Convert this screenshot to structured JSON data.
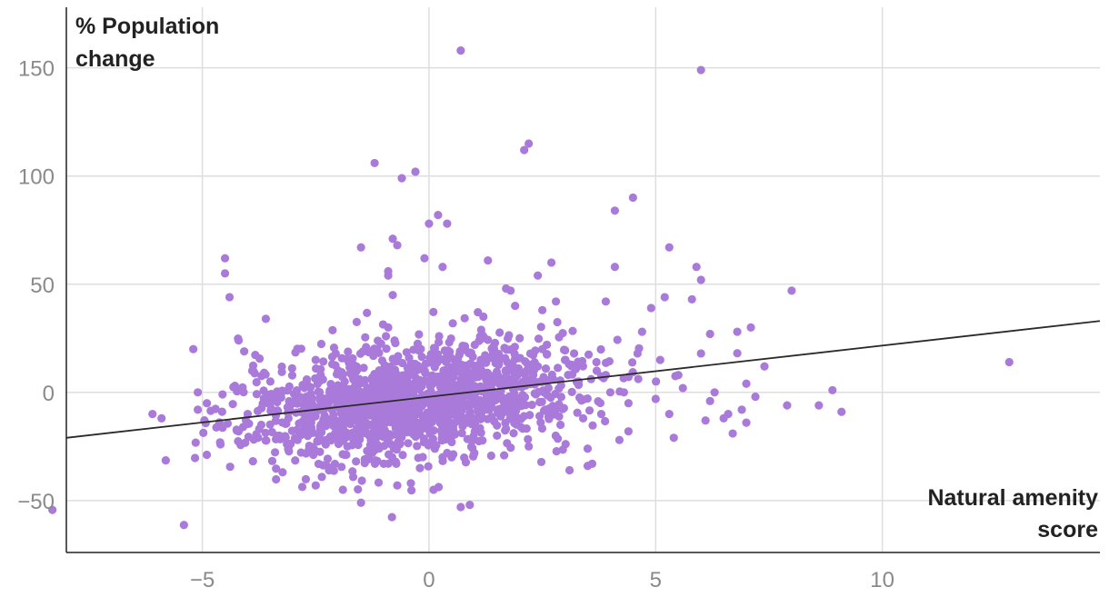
{
  "chart_data": {
    "type": "scatter",
    "ylabel_lines": [
      "% Population",
      "change"
    ],
    "xlabel_lines": [
      "Natural amenity",
      "score"
    ],
    "xlim": [
      -8,
      14.8
    ],
    "ylim": [
      -74,
      178
    ],
    "x_ticks": [
      -5,
      0,
      5,
      10
    ],
    "y_ticks": [
      -50,
      0,
      50,
      100,
      150
    ],
    "x_tick_labels": [
      "−5",
      "0",
      "5",
      "10"
    ],
    "y_tick_labels": [
      "−50",
      "0",
      "50",
      "100",
      "150"
    ],
    "grid": true,
    "point_color": "#a97ad9",
    "trend_color": "#2a2a2a",
    "trendline": {
      "x": [
        -8,
        14.8
      ],
      "y": [
        -21,
        33
      ]
    },
    "points": {
      "x": [
        0.7,
        6.0,
        2.2,
        2.1,
        -1.2,
        -0.3,
        -0.6,
        4.5,
        0.2,
        0.4,
        4.1,
        0.0,
        -0.8,
        -0.7,
        -1.5,
        5.3,
        -4.5,
        -4.5,
        2.7,
        0.3,
        1.3,
        4.1,
        5.9,
        -0.9,
        -0.9,
        2.4,
        8.0,
        1.8,
        -4.4,
        -0.1,
        -3.6,
        -5.2,
        -4.2,
        6.0,
        5.8,
        4.9,
        5.2,
        7.1,
        7.4,
        12.8,
        6.8,
        6.2,
        -6.1,
        -5.9,
        -5.1,
        -5.1,
        -4.9,
        -4.6,
        8.9,
        9.1,
        8.6,
        7.9,
        7.2,
        7.0,
        6.6,
        6.1,
        -1.9,
        -1.5,
        0.7,
        0.9,
        0.1,
        -0.7,
        -0.4,
        3.1,
        3.5,
        3.6,
        4.2,
        4.4,
        5.4,
        6.7,
        5.3,
        3.5,
        3.9,
        2.8,
        1.7,
        2.5,
        -3.9,
        -3.5,
        -2.5,
        -1.2,
        -0.9,
        1.9,
        1.2,
        4.7,
        6.0,
        5.5,
        6.3,
        4.4,
        3.8,
        2.9,
        1.5,
        1.0,
        0.5,
        -0.2,
        -1.0,
        -1.8,
        -2.9,
        -3.3,
        -4.1,
        -4.0,
        -3.0,
        -2.2,
        0.8,
        1.4,
        2.3,
        3.3,
        4.0,
        5.0,
        6.2,
        6.9,
        7.0,
        3.0,
        2.0,
        1.1,
        -0.5,
        -1.4,
        -2.3,
        -3.1,
        -3.7,
        -4.2,
        0.6,
        -0.8,
        2.6,
        3.2,
        -2.7,
        -1.7,
        -0.3,
        0.9,
        1.6,
        2.4,
        4.6,
        5.6,
        3.4,
        2.2,
        0.3,
        -1.1,
        -2.0,
        1.8,
        0.0,
        -0.6,
        1.0,
        2.8,
        3.7,
        4.3,
        -2.6,
        -3.4,
        5.1,
        1.3,
        -1.6,
        0.4,
        -0.4,
        2.5,
        3.9,
        6.5
      ],
      "y": [
        158,
        149,
        115,
        112,
        106,
        102,
        99,
        90,
        82,
        78,
        84,
        78,
        71,
        68,
        67,
        67,
        62,
        55,
        60,
        58,
        61,
        58,
        58,
        56,
        54,
        54,
        47,
        47,
        44,
        62,
        34,
        20,
        24,
        52,
        43,
        39,
        44,
        30,
        12,
        14,
        28,
        27,
        -10,
        -12,
        -8,
        0,
        -5,
        -24,
        1,
        -9,
        -6,
        -6,
        -2,
        -14,
        -10,
        -13,
        -45,
        -51,
        -53,
        -52,
        -45,
        -43,
        -42,
        -36,
        -34,
        -33,
        -22,
        -18,
        -21,
        -19,
        -10,
        -26,
        42,
        42,
        48,
        38,
        10,
        5,
        15,
        20,
        30,
        40,
        35,
        28,
        18,
        8,
        0,
        -5,
        -10,
        -15,
        -20,
        -28,
        -30,
        -35,
        -33,
        -25,
        -22,
        -20,
        -16,
        -10,
        -5,
        -3,
        12,
        20,
        8,
        5,
        0,
        -3,
        -4,
        -8,
        4,
        15,
        25,
        10,
        5,
        0,
        -6,
        -12,
        -15,
        -18,
        2,
        45,
        22,
        18,
        5,
        -10,
        -8,
        0,
        6,
        12,
        18,
        2,
        -12,
        -25,
        -30,
        -20,
        -15,
        -5,
        -15,
        -6,
        3,
        -8,
        10,
        0,
        -14,
        -2,
        15,
        -8,
        10,
        -28,
        -3,
        20,
        8,
        -12
      ]
    },
    "cloud": {
      "n": 1450,
      "x_mean": -0.4,
      "x_sd": 1.85,
      "y_mean": -4,
      "y_sd": 13,
      "seed": 7
    }
  }
}
